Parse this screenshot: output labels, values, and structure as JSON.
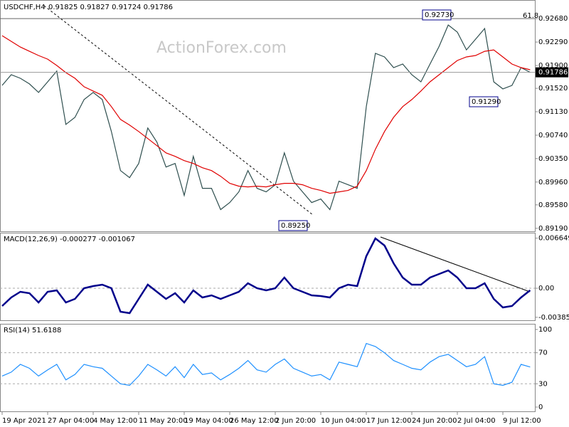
{
  "chart_data": [
    {
      "type": "line",
      "title": "USDCHF,H4",
      "subtitle": "0.91825 0.91827 0.91724 0.91786",
      "watermark": "ActionForex.com",
      "categories": [
        "19 Apr 2021",
        null,
        null,
        null,
        null,
        "27 Apr 04:00",
        null,
        null,
        null,
        null,
        "4 May 12:00",
        null,
        null,
        null,
        null,
        "11 May 20:00",
        null,
        null,
        null,
        null,
        "19 May 04:00",
        null,
        null,
        null,
        null,
        "26 May 12:00",
        null,
        null,
        null,
        null,
        "2 Jun 20:00",
        null,
        null,
        null,
        null,
        "10 Jun 04:00",
        null,
        null,
        null,
        null,
        "17 Jun 12:00",
        null,
        null,
        null,
        null,
        "24 Jun 20:00",
        null,
        null,
        null,
        null,
        "2 Jul 04:00",
        null,
        null,
        null,
        null,
        "9 Jul 12:00",
        null,
        null,
        null
      ],
      "series": [
        {
          "color": "#2f4f4f",
          "values": [
            0.91569,
            0.91746,
            0.91687,
            0.91593,
            0.91451,
            0.91628,
            0.91806,
            0.90919,
            0.91037,
            0.91333,
            0.91451,
            0.91333,
            0.90801,
            0.90151,
            0.90033,
            0.90269,
            0.9086,
            0.90624,
            0.9021,
            0.90269,
            0.89737,
            0.90387,
            0.89856,
            0.89856,
            0.89501,
            0.89619,
            0.89796,
            0.90151,
            0.89856,
            0.89796,
            0.89915,
            0.90446,
            0.89974,
            0.89796,
            0.89619,
            0.89678,
            0.89501,
            0.89974,
            0.89915,
            0.89856,
            0.91215,
            0.92101,
            0.92042,
            0.91865,
            0.91924,
            0.91746,
            0.91628,
            0.91924,
            0.92219,
            0.92574,
            0.92456,
            0.9216,
            0.92337,
            0.92515,
            0.91628,
            0.9151,
            0.91569,
            0.91865,
            0.91786
          ]
        },
        {
          "color": "#e00000",
          "values": [
            0.92396,
            0.92302,
            0.92207,
            0.92136,
            0.92066,
            0.92006,
            0.919,
            0.91782,
            0.91687,
            0.91546,
            0.91475,
            0.91404,
            0.91215,
            0.91002,
            0.90907,
            0.90801,
            0.90683,
            0.90565,
            0.90446,
            0.90387,
            0.90316,
            0.90269,
            0.90198,
            0.90151,
            0.90056,
            0.89938,
            0.89891,
            0.89879,
            0.89891,
            0.89879,
            0.89915,
            0.89938,
            0.89938,
            0.89915,
            0.89856,
            0.8982,
            0.89773,
            0.89796,
            0.8982,
            0.89891,
            0.90151,
            0.90506,
            0.90801,
            0.91037,
            0.91215,
            0.91333,
            0.91475,
            0.91628,
            0.91746,
            0.91865,
            0.91983,
            0.92042,
            0.92066,
            0.92136,
            0.9216,
            0.92042,
            0.91924,
            0.91865,
            0.91829
          ]
        }
      ],
      "ylim": [
        0.8914,
        0.9299
      ],
      "yticks": [
        {
          "value": 0.9268,
          "label": "0.92680"
        },
        {
          "value": 0.9229,
          "label": "0.92290"
        },
        {
          "value": 0.919,
          "label": "0.91900"
        },
        {
          "value": 0.9152,
          "label": "0.91520"
        },
        {
          "value": 0.9113,
          "label": "0.91130"
        },
        {
          "value": 0.9074,
          "label": "0.90740"
        },
        {
          "value": 0.9035,
          "label": "0.90350"
        },
        {
          "value": 0.8996,
          "label": "0.89960"
        },
        {
          "value": 0.8958,
          "label": "0.89580"
        },
        {
          "value": 0.8919,
          "label": "0.89190"
        }
      ],
      "current_price": {
        "value": 0.91786,
        "label": "0.91786"
      },
      "level_label": "61.8",
      "annotations": [
        "0.92730",
        "0.91290",
        "0.89250"
      ]
    },
    {
      "type": "line",
      "title": "MACD(12,26,9) -0.000277 -0.001067",
      "series": [
        {
          "color": "#00008b",
          "values": [
            -0.002363,
            -0.001229,
            -0.000473,
            -0.000662,
            -0.00189,
            -0.000473,
            -0.000284,
            -0.00189,
            -0.001418,
            0,
            0.000284,
            0.000473,
            0,
            -0.003119,
            -0.003308,
            -0.001418,
            0.000473,
            -0.000473,
            -0.001418,
            -0.000662,
            -0.00189,
            -0.000284,
            -0.001229,
            -0.000945,
            -0.001418,
            -0.000945,
            -0.000473,
            0.000662,
            0,
            -0.000284,
            0,
            0.001418,
            0,
            -0.000473,
            -0.000945,
            -0.00104,
            -0.001229,
            0,
            0.000473,
            0.000284,
            0.004253,
            0.006615,
            0.00567,
            0.003308,
            0.001418,
            0.000473,
            0.000473,
            0.001418,
            0.00189,
            0.002363,
            0.001418,
            0,
            0,
            0.000662,
            -0.001418,
            -0.002552,
            -0.002363,
            -0.001229,
            -0.000277
          ]
        }
      ],
      "ylim": [
        -0.00425,
        0.00737
      ],
      "yticks": [
        0.006649,
        {
          "value": 0,
          "label": "0.00"
        },
        -0.003855
      ]
    },
    {
      "type": "line",
      "title": "RSI(14) 51.6188",
      "series": [
        {
          "color": "#1e90ff",
          "values": [
            40,
            45,
            55,
            50,
            40,
            48,
            55,
            35,
            42,
            55,
            52,
            50,
            40,
            30,
            28,
            40,
            55,
            48,
            40,
            52,
            38,
            55,
            42,
            44,
            35,
            42,
            50,
            60,
            48,
            45,
            55,
            62,
            50,
            45,
            40,
            42,
            35,
            58,
            55,
            52,
            82,
            78,
            70,
            60,
            55,
            50,
            48,
            58,
            65,
            68,
            60,
            52,
            55,
            65,
            30,
            28,
            32,
            55,
            51.6188
          ]
        }
      ],
      "ylim": [
        -5.5,
        107.3
      ],
      "yticks": [
        0,
        30,
        70,
        100
      ]
    }
  ]
}
